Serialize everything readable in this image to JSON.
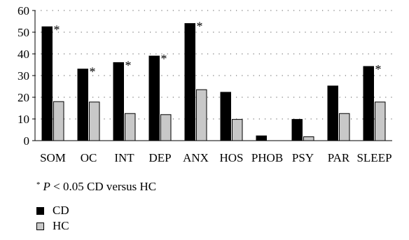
{
  "chart_data": {
    "type": "bar",
    "categories": [
      "SOM",
      "OC",
      "INT",
      "DEP",
      "ANX",
      "HOS",
      "PHOB",
      "PSY",
      "PAR",
      "SLEEP"
    ],
    "series": [
      {
        "name": "CD",
        "color": "#000000",
        "values": [
          52.5,
          33,
          36,
          39,
          54,
          22.3,
          2.2,
          9.8,
          25.2,
          34.2
        ]
      },
      {
        "name": "HC",
        "color": "#c8c8c8",
        "values": [
          18,
          17.8,
          12.5,
          12,
          23.5,
          9.8,
          0,
          1.8,
          12.5,
          17.8
        ]
      }
    ],
    "significant_marker": "*",
    "significant": [
      true,
      true,
      true,
      true,
      true,
      false,
      false,
      false,
      false,
      true
    ],
    "ylim": [
      0,
      60
    ],
    "yticks": [
      0,
      10,
      20,
      30,
      40,
      50,
      60
    ],
    "grid": "dotted horizontal",
    "title": "",
    "xlabel": "",
    "ylabel": ""
  },
  "footnote": {
    "marker": "*",
    "p": "P",
    "text": " < 0.05 CD versus HC"
  },
  "legend": [
    {
      "label": "CD",
      "color": "#000000"
    },
    {
      "label": "HC",
      "color": "#c8c8c8"
    }
  ]
}
